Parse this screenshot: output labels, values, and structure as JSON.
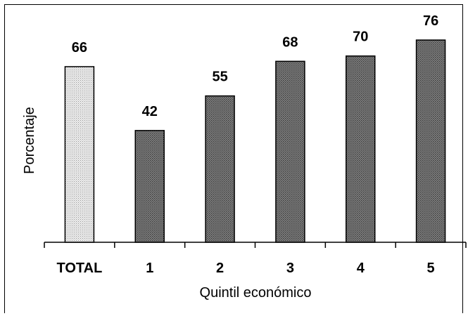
{
  "chart_data": {
    "type": "bar",
    "title": "",
    "xlabel": "Quintil económico",
    "ylabel": "Porcentaje",
    "categories": [
      "TOTAL",
      "1",
      "2",
      "3",
      "4",
      "5"
    ],
    "values": [
      66,
      42,
      55,
      68,
      70,
      76
    ],
    "data_labels": [
      "66",
      "42",
      "55",
      "68",
      "70",
      "76"
    ],
    "ylim": [
      0,
      76
    ],
    "grid": false,
    "legend": "none",
    "colors": {
      "highlight": "#d9d9d9",
      "bars": "#6e6e6e",
      "outline": "#000000"
    }
  }
}
